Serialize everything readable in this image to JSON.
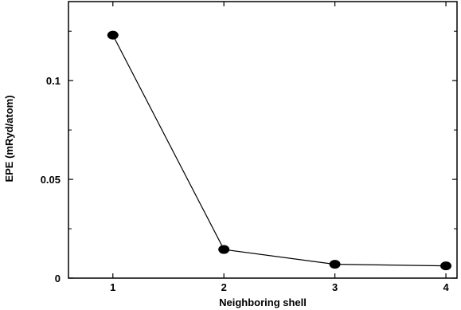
{
  "chart_data": {
    "type": "line",
    "title": "",
    "xlabel": "Neighboring shell",
    "ylabel": "EPE (mRyd/atom)",
    "x": [
      1,
      2,
      3,
      4
    ],
    "x_tick_labels": [
      "1",
      "2",
      "3",
      "4"
    ],
    "y_tick_values": [
      0,
      0.05,
      0.1
    ],
    "y_tick_labels": [
      "0",
      "0.05",
      "0.1"
    ],
    "xlim": [
      0.6,
      4.1
    ],
    "ylim": [
      0,
      0.14
    ],
    "grid": false,
    "series": [
      {
        "values": [
          0.123,
          0.0145,
          0.007,
          0.0062
        ]
      }
    ],
    "colors": {
      "line": "#000000",
      "marker": "#000000"
    }
  }
}
